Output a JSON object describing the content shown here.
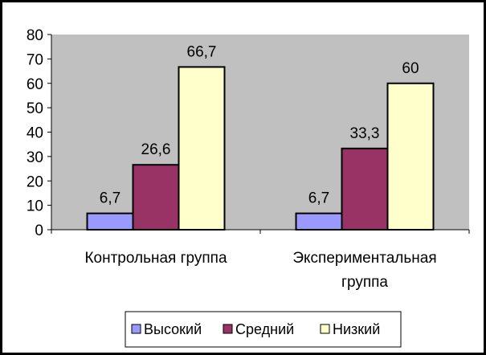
{
  "chart_data": {
    "type": "bar",
    "categories": [
      "Контрольная группа",
      "Экспериментальная группа"
    ],
    "category_lines": [
      [
        "Контрольная группа"
      ],
      [
        "Экспериментальная",
        "группа"
      ]
    ],
    "series": [
      {
        "name": "Высокий",
        "values": [
          6.7,
          6.7
        ],
        "labels": [
          "6,7",
          "6,7"
        ],
        "color": "#9999ff"
      },
      {
        "name": "Средний",
        "values": [
          26.6,
          33.3
        ],
        "labels": [
          "26,6",
          "33,3"
        ],
        "color": "#993366"
      },
      {
        "name": "Низкий",
        "values": [
          66.7,
          60
        ],
        "labels": [
          "66,7",
          "60"
        ],
        "color": "#ffffcc"
      }
    ],
    "ylim": [
      0,
      80
    ],
    "yticks": [
      0,
      10,
      20,
      30,
      40,
      50,
      60,
      70,
      80
    ],
    "grid": false,
    "plot_background": "#c0c0c0",
    "legend_position": "bottom",
    "title": "",
    "xlabel": "",
    "ylabel": ""
  }
}
